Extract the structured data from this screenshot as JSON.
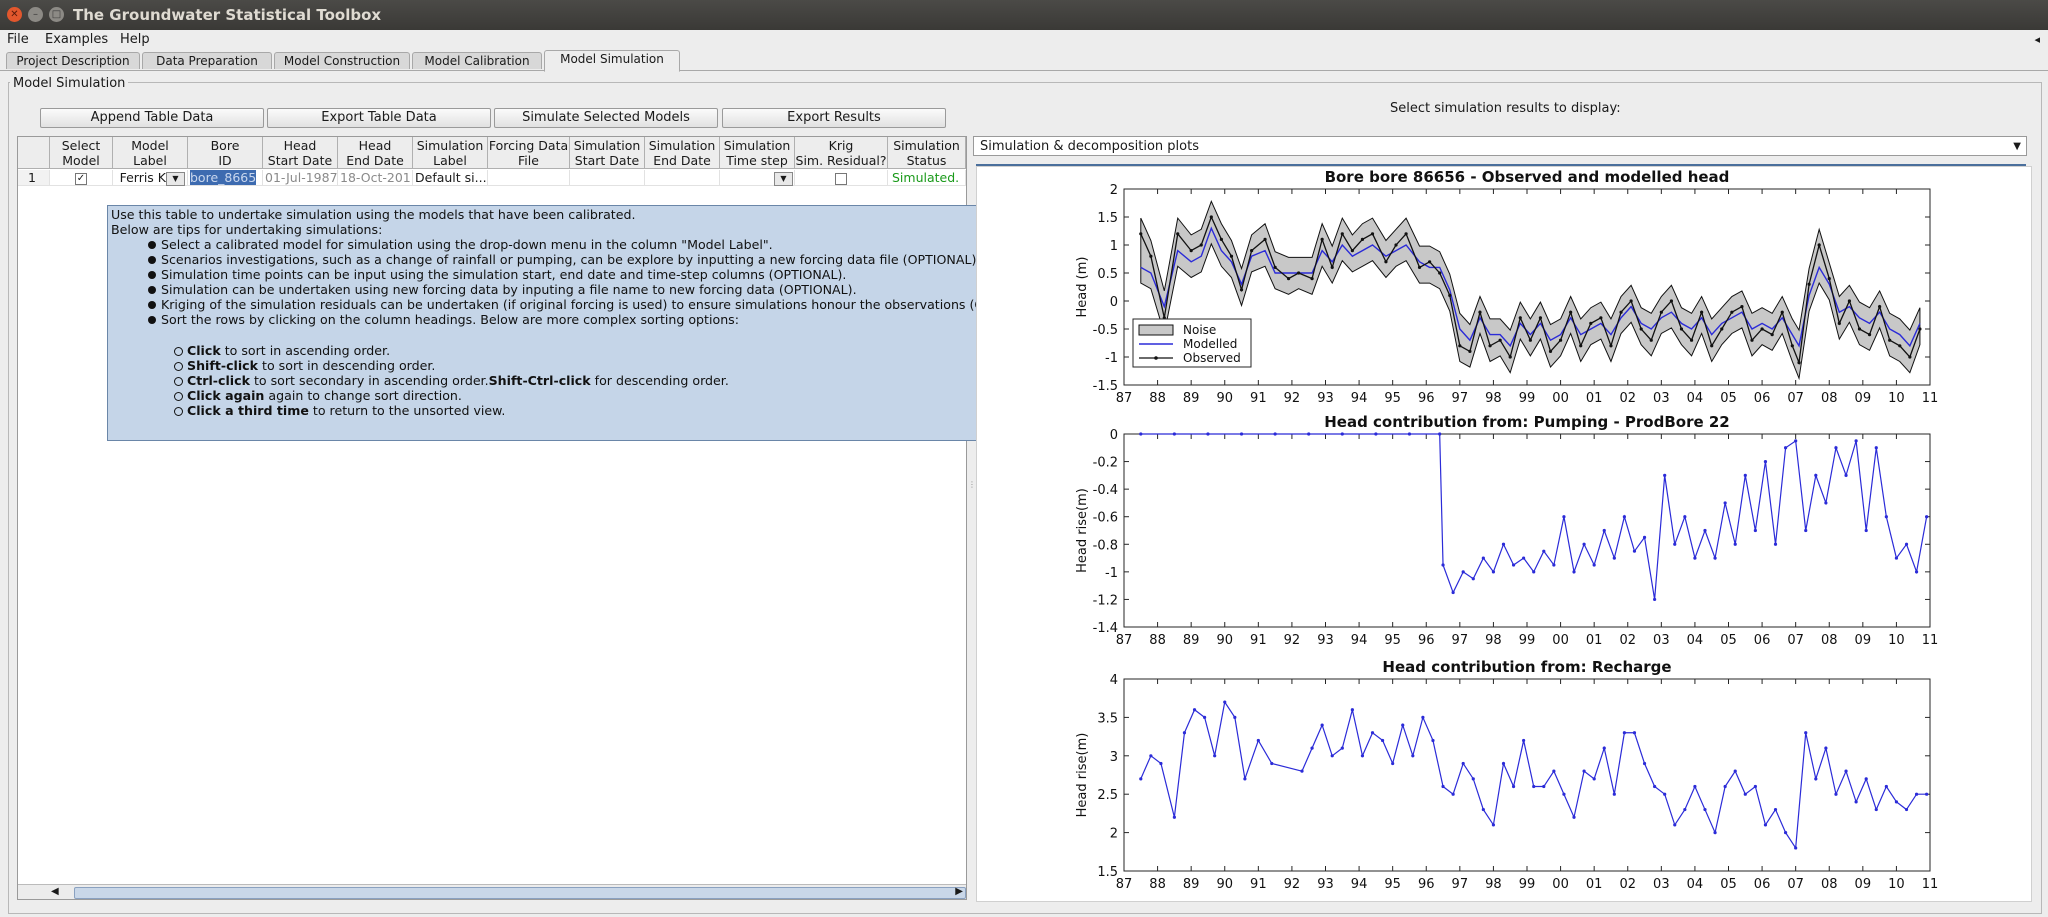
{
  "window": {
    "title": "The Groundwater Statistical Toolbox"
  },
  "menu": [
    "File",
    "Examples",
    "Help"
  ],
  "tabs": [
    "Project Description",
    "Data Preparation",
    "Model Construction",
    "Model Calibration",
    "Model Simulation"
  ],
  "panel_title": "Model Simulation",
  "buttons": {
    "append": "Append Table Data",
    "export_table": "Export Table Data",
    "simulate": "Simulate Selected Models",
    "export_results": "Export Results"
  },
  "table": {
    "headers": [
      [
        "Select",
        "Model"
      ],
      [
        "Model",
        "Label"
      ],
      [
        "Bore",
        "ID"
      ],
      [
        "Head",
        "Start Date"
      ],
      [
        "Head",
        "End Date"
      ],
      [
        "Simulation",
        "Label"
      ],
      [
        "Forcing Data",
        "File"
      ],
      [
        "Simulation",
        "Start Date"
      ],
      [
        "Simulation",
        "End Date"
      ],
      [
        "Simulation",
        "Time step"
      ],
      [
        "Krig",
        "Sim. Residual?"
      ],
      [
        "Simulation",
        "Status"
      ]
    ],
    "row": {
      "index": "1",
      "model_label": "Ferris K",
      "bore_id": "bore_8665",
      "head_start": "01-Jul-1987",
      "head_end": "18-Oct-201",
      "sim_label": "Default si...",
      "status": "Simulated."
    }
  },
  "tooltip": {
    "intro1": "Use this table to undertake simulation using the models that have been calibrated.",
    "intro2": "Below are tips for undertaking simulations:",
    "tips": [
      "Select a calibrated model for simulation using the drop-down menu in the column \"Model Label\".",
      "Scenarios investigations, such as a change of rainfall or pumping, can be explore by inputting a new forcing data file (OPTIONAL).",
      "Simulation time points can be input using the simulation start, end date and time-step columns (OPTIONAL).",
      "Simulation can be undertaken using new forcing data by inputing a file name to new forcing data (OPTIONAL).",
      "Kriging of the simulation residuals can be undertaken (if original forcing is used) to ensure simulations honour the observations (OPTIONAL).",
      "Sort the rows by clicking on the column headings. Below are more complex sorting options:"
    ],
    "sort": [
      {
        "b": "Click",
        "t": " to sort in ascending order."
      },
      {
        "b": "Shift-click",
        "t": " to sort in descending order."
      },
      {
        "b": "Ctrl-click",
        "t": " to sort secondary in ascending order.",
        "b2": "Shift-Ctrl-click",
        "t2": " for descending order."
      },
      {
        "b": "Click again",
        "t": " again to change sort direction."
      },
      {
        "b": "Click a third time",
        "t": " to return to the unsorted view."
      }
    ]
  },
  "display": {
    "label": "Select simulation results to display:",
    "selected": "Simulation & decomposition plots"
  },
  "colors": {
    "modelled": "#2b2bd8",
    "noise": "#c8c8c8",
    "status": "#1a9a1a",
    "tooltip_bg": "#c5d5e8"
  },
  "chart_data": [
    {
      "type": "line",
      "title": "Bore bore 86656 - Observed and modelled head",
      "ylabel": "Head (m)",
      "xlim": [
        1987,
        2011
      ],
      "ylim": [
        -1.5,
        2
      ],
      "xticks": [
        "87",
        "88",
        "89",
        "90",
        "91",
        "92",
        "93",
        "94",
        "95",
        "96",
        "97",
        "98",
        "99",
        "00",
        "01",
        "02",
        "03",
        "04",
        "05",
        "06",
        "07",
        "08",
        "09",
        "10",
        "11"
      ],
      "yticks": [
        "-1.5",
        "-1",
        "-0.5",
        "0",
        "0.5",
        "1",
        "1.5",
        "2"
      ],
      "legend": [
        "Noise",
        "Modelled",
        "Observed"
      ],
      "legend_position": "bottom-left",
      "x": [
        1987.5,
        1987.8,
        1988.2,
        1988.6,
        1989.0,
        1989.3,
        1989.6,
        1989.9,
        1990.2,
        1990.5,
        1990.8,
        1991.2,
        1991.5,
        1991.9,
        1992.2,
        1992.6,
        1992.9,
        1993.2,
        1993.5,
        1993.8,
        1994.1,
        1994.4,
        1994.8,
        1995.1,
        1995.4,
        1995.8,
        1996.1,
        1996.4,
        1996.7,
        1997.0,
        1997.3,
        1997.6,
        1997.9,
        1998.2,
        1998.5,
        1998.8,
        1999.1,
        1999.4,
        1999.7,
        2000.0,
        2000.3,
        2000.6,
        2000.9,
        2001.2,
        2001.5,
        2001.8,
        2002.1,
        2002.4,
        2002.7,
        2003.0,
        2003.3,
        2003.6,
        2003.9,
        2004.2,
        2004.5,
        2004.8,
        2005.1,
        2005.4,
        2005.7,
        2006.0,
        2006.3,
        2006.6,
        2006.9,
        2007.1,
        2007.4,
        2007.7,
        2008.0,
        2008.3,
        2008.6,
        2008.9,
        2009.2,
        2009.5,
        2009.8,
        2010.1,
        2010.4,
        2010.7
      ],
      "series": [
        {
          "name": "Modelled",
          "values": [
            0.6,
            0.5,
            -0.1,
            0.9,
            0.7,
            0.8,
            1.3,
            0.9,
            0.7,
            0.3,
            0.8,
            0.9,
            0.5,
            0.5,
            0.5,
            0.5,
            0.9,
            0.7,
            1.0,
            0.8,
            0.9,
            1.0,
            0.8,
            0.9,
            1.0,
            0.7,
            0.6,
            0.6,
            0.2,
            -0.5,
            -0.7,
            -0.3,
            -0.6,
            -0.6,
            -0.8,
            -0.4,
            -0.6,
            -0.4,
            -0.7,
            -0.6,
            -0.3,
            -0.6,
            -0.5,
            -0.4,
            -0.6,
            -0.3,
            -0.1,
            -0.4,
            -0.5,
            -0.3,
            -0.2,
            -0.4,
            -0.5,
            -0.3,
            -0.6,
            -0.4,
            -0.3,
            -0.2,
            -0.5,
            -0.4,
            -0.5,
            -0.3,
            -0.6,
            -0.8,
            0.1,
            0.6,
            0.3,
            -0.2,
            -0.1,
            -0.3,
            -0.4,
            -0.2,
            -0.5,
            -0.6,
            -0.8,
            -0.4
          ]
        },
        {
          "name": "Observed",
          "values": [
            1.2,
            0.8,
            -0.3,
            1.2,
            0.9,
            1.0,
            1.5,
            1.1,
            0.8,
            0.2,
            0.9,
            1.1,
            0.6,
            0.4,
            0.5,
            0.4,
            1.1,
            0.6,
            1.2,
            0.9,
            1.1,
            1.2,
            0.7,
            1.0,
            1.2,
            0.6,
            0.7,
            0.5,
            0.1,
            -0.8,
            -0.9,
            -0.2,
            -0.8,
            -0.7,
            -1.0,
            -0.3,
            -0.7,
            -0.3,
            -0.9,
            -0.7,
            -0.2,
            -0.8,
            -0.4,
            -0.3,
            -0.8,
            -0.2,
            0.0,
            -0.5,
            -0.7,
            -0.2,
            0.0,
            -0.5,
            -0.7,
            -0.2,
            -0.8,
            -0.5,
            -0.2,
            -0.1,
            -0.7,
            -0.5,
            -0.6,
            -0.2,
            -0.8,
            -1.1,
            0.3,
            1.0,
            0.4,
            -0.4,
            0.0,
            -0.5,
            -0.6,
            -0.1,
            -0.7,
            -0.8,
            -1.0,
            -0.5
          ]
        }
      ]
    },
    {
      "type": "line",
      "title": "Head contribution from: Pumping - ProdBore 22",
      "ylabel": "Head rise(m)",
      "xlim": [
        1987,
        2011
      ],
      "ylim": [
        -1.4,
        0
      ],
      "xticks": [
        "87",
        "88",
        "89",
        "90",
        "91",
        "92",
        "93",
        "94",
        "95",
        "96",
        "97",
        "98",
        "99",
        "00",
        "01",
        "02",
        "03",
        "04",
        "05",
        "06",
        "07",
        "08",
        "09",
        "10",
        "11"
      ],
      "yticks": [
        "-1.4",
        "-1.2",
        "-1",
        "-0.8",
        "-0.6",
        "-0.4",
        "-0.2",
        "0"
      ],
      "x": [
        1987.5,
        1988.5,
        1989.5,
        1990.5,
        1991.5,
        1992.5,
        1993.5,
        1994.5,
        1995.5,
        1996.4,
        1996.5,
        1996.8,
        1997.1,
        1997.4,
        1997.7,
        1998.0,
        1998.3,
        1998.6,
        1998.9,
        1999.2,
        1999.5,
        1999.8,
        2000.1,
        2000.4,
        2000.7,
        2001.0,
        2001.3,
        2001.6,
        2001.9,
        2002.2,
        2002.5,
        2002.8,
        2003.1,
        2003.4,
        2003.7,
        2004.0,
        2004.3,
        2004.6,
        2004.9,
        2005.2,
        2005.5,
        2005.8,
        2006.1,
        2006.4,
        2006.7,
        2007.0,
        2007.3,
        2007.6,
        2007.9,
        2008.2,
        2008.5,
        2008.8,
        2009.1,
        2009.4,
        2009.7,
        2010.0,
        2010.3,
        2010.6,
        2010.9
      ],
      "series": [
        {
          "name": "",
          "values": [
            0,
            0,
            0,
            0,
            0,
            0,
            0,
            0,
            0,
            0,
            -0.95,
            -1.15,
            -1.0,
            -1.05,
            -0.9,
            -1.0,
            -0.8,
            -0.95,
            -0.9,
            -1.0,
            -0.85,
            -0.95,
            -0.6,
            -1.0,
            -0.8,
            -0.95,
            -0.7,
            -0.9,
            -0.6,
            -0.85,
            -0.75,
            -1.2,
            -0.3,
            -0.8,
            -0.6,
            -0.9,
            -0.7,
            -0.9,
            -0.5,
            -0.8,
            -0.3,
            -0.7,
            -0.2,
            -0.8,
            -0.1,
            -0.05,
            -0.7,
            -0.3,
            -0.5,
            -0.1,
            -0.3,
            -0.05,
            -0.7,
            -0.1,
            -0.6,
            -0.9,
            -0.8,
            -1.0,
            -0.6
          ]
        }
      ]
    },
    {
      "type": "line",
      "title": "Head contribution from: Recharge",
      "ylabel": "Head rise(m)",
      "xlim": [
        1987,
        2011
      ],
      "ylim": [
        1.5,
        4
      ],
      "xticks": [
        "87",
        "88",
        "89",
        "90",
        "91",
        "92",
        "93",
        "94",
        "95",
        "96",
        "97",
        "98",
        "99",
        "00",
        "01",
        "02",
        "03",
        "04",
        "05",
        "06",
        "07",
        "08",
        "09",
        "10",
        "11"
      ],
      "yticks": [
        "1.5",
        "2",
        "2.5",
        "3",
        "3.5",
        "4"
      ],
      "x": [
        1987.5,
        1987.8,
        1988.1,
        1988.5,
        1988.8,
        1989.1,
        1989.4,
        1989.7,
        1990.0,
        1990.3,
        1990.6,
        1991.0,
        1991.4,
        1992.3,
        1992.6,
        1992.9,
        1993.2,
        1993.5,
        1993.8,
        1994.1,
        1994.4,
        1994.7,
        1995.0,
        1995.3,
        1995.6,
        1995.9,
        1996.2,
        1996.5,
        1996.8,
        1997.1,
        1997.4,
        1997.7,
        1998.0,
        1998.3,
        1998.6,
        1998.9,
        1999.2,
        1999.5,
        1999.8,
        2000.1,
        2000.4,
        2000.7,
        2001.0,
        2001.3,
        2001.6,
        2001.9,
        2002.2,
        2002.5,
        2002.8,
        2003.1,
        2003.4,
        2003.7,
        2004.0,
        2004.3,
        2004.6,
        2004.9,
        2005.2,
        2005.5,
        2005.8,
        2006.1,
        2006.4,
        2006.7,
        2007.0,
        2007.3,
        2007.6,
        2007.9,
        2008.2,
        2008.5,
        2008.8,
        2009.1,
        2009.4,
        2009.7,
        2010.0,
        2010.3,
        2010.6,
        2010.9
      ],
      "series": [
        {
          "name": "",
          "values": [
            2.7,
            3.0,
            2.9,
            2.2,
            3.3,
            3.6,
            3.5,
            3.0,
            3.7,
            3.5,
            2.7,
            3.2,
            2.9,
            2.8,
            3.1,
            3.4,
            3.0,
            3.1,
            3.6,
            3.0,
            3.3,
            3.2,
            2.9,
            3.4,
            3.0,
            3.5,
            3.2,
            2.6,
            2.5,
            2.9,
            2.7,
            2.3,
            2.1,
            2.9,
            2.6,
            3.2,
            2.6,
            2.6,
            2.8,
            2.5,
            2.2,
            2.8,
            2.7,
            3.1,
            2.5,
            3.3,
            3.3,
            2.9,
            2.6,
            2.5,
            2.1,
            2.3,
            2.6,
            2.3,
            2.0,
            2.6,
            2.8,
            2.5,
            2.6,
            2.1,
            2.3,
            2.0,
            1.8,
            3.3,
            2.7,
            3.1,
            2.5,
            2.8,
            2.4,
            2.7,
            2.3,
            2.6,
            2.4,
            2.3,
            2.5,
            2.5
          ]
        }
      ]
    }
  ]
}
